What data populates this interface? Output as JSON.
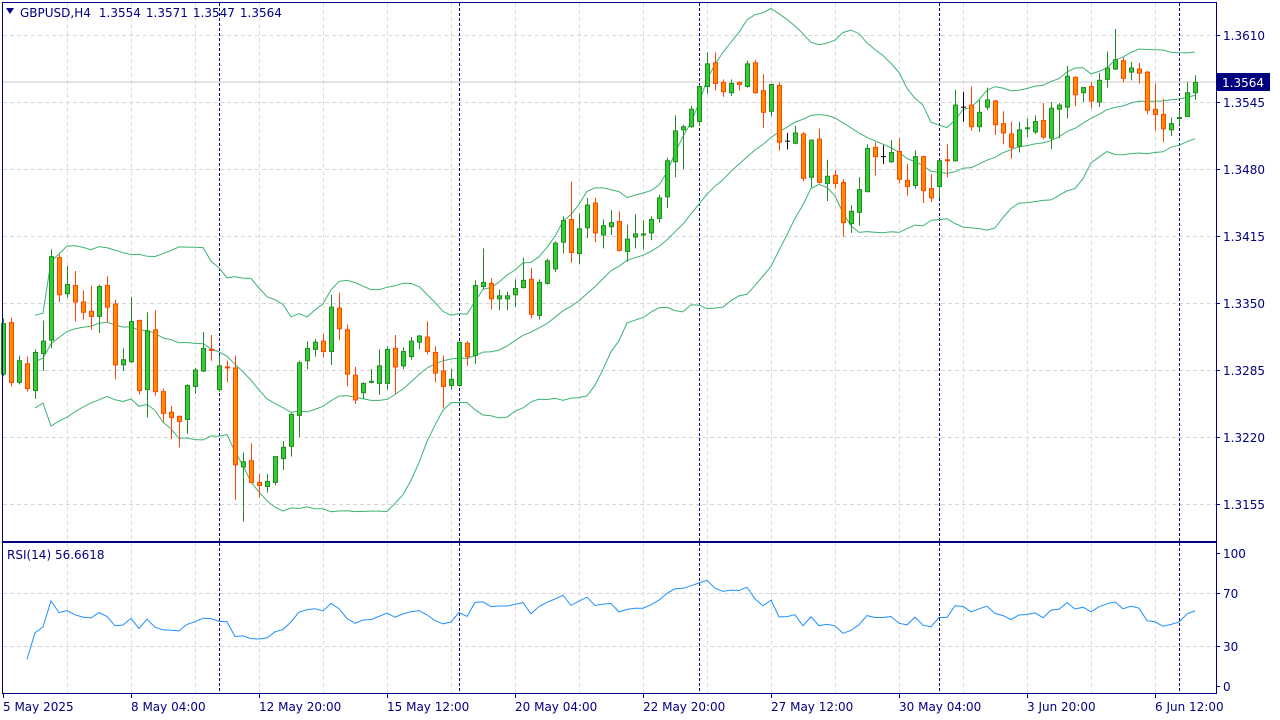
{
  "header": {
    "menu_icon": "triangle-down-icon",
    "symbol_timeframe": "GBPUSD,H4",
    "open": "1.3554",
    "high": "1.3571",
    "low": "1.3547",
    "close": "1.3564"
  },
  "current_price_label": "1.3564",
  "rsi_label": "RSI(14) 56.6618",
  "colors": {
    "bull_fill": "#32CD32",
    "bull_border": "#228B22",
    "bear_fill": "#FF8C00",
    "bear_border": "#FF4500",
    "bands": "#3CB371",
    "rsi": "#1E90FF",
    "axis": "#000080"
  },
  "chart_data": [
    {
      "type": "candlestick",
      "title": "GBPUSD,H4",
      "indicator": "Bollinger Bands (20, 2)",
      "ylim": [
        1.3115,
        1.3659
      ],
      "yticks": [
        "1.3610",
        "1.3545",
        "1.3480",
        "1.3415",
        "1.3350",
        "1.3285",
        "1.3220",
        "1.3155"
      ],
      "ytick_values": [
        1.361,
        1.3545,
        1.348,
        1.3415,
        1.335,
        1.3285,
        1.322,
        1.3155
      ],
      "xticks": [
        "5 May 2025",
        "8 May 04:00",
        "12 May 20:00",
        "15 May 12:00",
        "20 May 04:00",
        "22 May 20:00",
        "27 May 12:00",
        "30 May 04:00",
        "3 Jun 20:00",
        "6 Jun 12:00"
      ],
      "grid": true,
      "ohlc": [
        [
          1.3281,
          1.3335,
          1.3279,
          1.333
        ],
        [
          1.3331,
          1.3336,
          1.3269,
          1.3273
        ],
        [
          1.3273,
          1.3299,
          1.3271,
          1.3294
        ],
        [
          1.3291,
          1.3298,
          1.3264,
          1.3267
        ],
        [
          1.3265,
          1.3305,
          1.3257,
          1.3302
        ],
        [
          1.3301,
          1.3333,
          1.3284,
          1.3313
        ],
        [
          1.3314,
          1.3402,
          1.3306,
          1.3395
        ],
        [
          1.3394,
          1.3397,
          1.3351,
          1.3358
        ],
        [
          1.3359,
          1.3386,
          1.3355,
          1.3368
        ],
        [
          1.3367,
          1.3381,
          1.3332,
          1.3351
        ],
        [
          1.3351,
          1.3362,
          1.3334,
          1.3341
        ],
        [
          1.3342,
          1.3367,
          1.3324,
          1.3337
        ],
        [
          1.3337,
          1.3368,
          1.3321,
          1.3366
        ],
        [
          1.3367,
          1.3376,
          1.3331,
          1.3346
        ],
        [
          1.3349,
          1.3353,
          1.3276,
          1.329
        ],
        [
          1.329,
          1.3306,
          1.3284,
          1.3295
        ],
        [
          1.3293,
          1.3356,
          1.3292,
          1.3332
        ],
        [
          1.3333,
          1.3334,
          1.3261,
          1.3265
        ],
        [
          1.3266,
          1.3341,
          1.3239,
          1.3323
        ],
        [
          1.3324,
          1.3343,
          1.326,
          1.3264
        ],
        [
          1.3264,
          1.3267,
          1.3235,
          1.3243
        ],
        [
          1.3244,
          1.325,
          1.3218,
          1.3239
        ],
        [
          1.324,
          1.3241,
          1.321,
          1.3235
        ],
        [
          1.3237,
          1.3271,
          1.3223,
          1.327
        ],
        [
          1.3269,
          1.3287,
          1.3262,
          1.3285
        ],
        [
          1.3284,
          1.3322,
          1.3283,
          1.3306
        ],
        [
          1.3305,
          1.3319,
          1.3294,
          1.3304
        ],
        [
          1.3266,
          1.3299,
          1.3264,
          1.3289
        ],
        [
          1.3288,
          1.3294,
          1.3273,
          1.3287
        ],
        [
          1.3287,
          1.3299,
          1.3159,
          1.3193
        ],
        [
          1.3191,
          1.3205,
          1.3138,
          1.3196
        ],
        [
          1.3197,
          1.3214,
          1.3175,
          1.3176
        ],
        [
          1.3176,
          1.3184,
          1.3161,
          1.3173
        ],
        [
          1.3172,
          1.3184,
          1.3166,
          1.3177
        ],
        [
          1.3176,
          1.3201,
          1.3173,
          1.3201
        ],
        [
          1.3199,
          1.3216,
          1.3188,
          1.321
        ],
        [
          1.3211,
          1.3243,
          1.3201,
          1.3242
        ],
        [
          1.3241,
          1.3294,
          1.322,
          1.3292
        ],
        [
          1.3294,
          1.3313,
          1.3286,
          1.3306
        ],
        [
          1.3305,
          1.3315,
          1.3298,
          1.3312
        ],
        [
          1.3313,
          1.332,
          1.3297,
          1.3303
        ],
        [
          1.3303,
          1.3358,
          1.329,
          1.3346
        ],
        [
          1.3345,
          1.336,
          1.3314,
          1.3325
        ],
        [
          1.3324,
          1.3329,
          1.3269,
          1.3281
        ],
        [
          1.328,
          1.3288,
          1.3252,
          1.3256
        ],
        [
          1.3263,
          1.3273,
          1.3257,
          1.3272
        ],
        [
          1.3273,
          1.3286,
          1.3272,
          1.3274
        ],
        [
          1.3272,
          1.3305,
          1.3261,
          1.3289
        ],
        [
          1.3272,
          1.3308,
          1.3266,
          1.3305
        ],
        [
          1.3306,
          1.3319,
          1.3262,
          1.3288
        ],
        [
          1.3289,
          1.3307,
          1.3286,
          1.3303
        ],
        [
          1.3298,
          1.3317,
          1.3295,
          1.3313
        ],
        [
          1.3312,
          1.3319,
          1.3305,
          1.3318
        ],
        [
          1.3317,
          1.3332,
          1.33,
          1.3303
        ],
        [
          1.3302,
          1.3308,
          1.3273,
          1.3282
        ],
        [
          1.3284,
          1.3299,
          1.3248,
          1.3269
        ],
        [
          1.327,
          1.3286,
          1.3266,
          1.3276
        ],
        [
          1.327,
          1.3312,
          1.3269,
          1.3312
        ],
        [
          1.3311,
          1.3313,
          1.3289,
          1.3298
        ],
        [
          1.3299,
          1.3372,
          1.3291,
          1.3367
        ],
        [
          1.3366,
          1.3403,
          1.3363,
          1.337
        ],
        [
          1.3369,
          1.3374,
          1.3344,
          1.3354
        ],
        [
          1.3354,
          1.3363,
          1.3343,
          1.3357
        ],
        [
          1.3354,
          1.3361,
          1.3343,
          1.3357
        ],
        [
          1.3358,
          1.3373,
          1.3346,
          1.3364
        ],
        [
          1.3365,
          1.3394,
          1.3364,
          1.3372
        ],
        [
          1.3373,
          1.3384,
          1.3335,
          1.3339
        ],
        [
          1.3338,
          1.3373,
          1.3334,
          1.337
        ],
        [
          1.3369,
          1.3393,
          1.3368,
          1.3391
        ],
        [
          1.3383,
          1.341,
          1.338,
          1.3408
        ],
        [
          1.3409,
          1.3434,
          1.3398,
          1.343
        ],
        [
          1.3431,
          1.3468,
          1.3389,
          1.3399
        ],
        [
          1.3398,
          1.3437,
          1.3388,
          1.3422
        ],
        [
          1.3423,
          1.3452,
          1.3413,
          1.3445
        ],
        [
          1.3447,
          1.3452,
          1.3409,
          1.3418
        ],
        [
          1.3416,
          1.3431,
          1.3403,
          1.3425
        ],
        [
          1.3424,
          1.344,
          1.3416,
          1.3428
        ],
        [
          1.3429,
          1.3439,
          1.34,
          1.3401
        ],
        [
          1.34,
          1.3426,
          1.339,
          1.3412
        ],
        [
          1.3414,
          1.3436,
          1.3403,
          1.3417
        ],
        [
          1.3416,
          1.343,
          1.3402,
          1.3417
        ],
        [
          1.3418,
          1.3434,
          1.3411,
          1.3431
        ],
        [
          1.3432,
          1.3455,
          1.3428,
          1.3452
        ],
        [
          1.3453,
          1.3491,
          1.3442,
          1.3488
        ],
        [
          1.3487,
          1.3532,
          1.3472,
          1.3517
        ],
        [
          1.3518,
          1.3523,
          1.348,
          1.3521
        ],
        [
          1.3521,
          1.3541,
          1.352,
          1.3538
        ],
        [
          1.3526,
          1.3562,
          1.3522,
          1.356
        ],
        [
          1.356,
          1.3593,
          1.3553,
          1.3582
        ],
        [
          1.3583,
          1.3593,
          1.3556,
          1.3563
        ],
        [
          1.3564,
          1.3567,
          1.355,
          1.3555
        ],
        [
          1.3554,
          1.3567,
          1.3551,
          1.3563
        ],
        [
          1.3564,
          1.3565,
          1.3556,
          1.3562
        ],
        [
          1.356,
          1.3585,
          1.3559,
          1.3582
        ],
        [
          1.3583,
          1.3586,
          1.3553,
          1.3554
        ],
        [
          1.3556,
          1.3572,
          1.352,
          1.3535
        ],
        [
          1.3536,
          1.3562,
          1.3531,
          1.3562
        ],
        [
          1.3561,
          1.3564,
          1.3498,
          1.3506
        ],
        [
          1.3507,
          1.3515,
          1.3499,
          1.3507
        ],
        [
          1.3505,
          1.3522,
          1.3504,
          1.3515
        ],
        [
          1.3514,
          1.3516,
          1.3468,
          1.3471
        ],
        [
          1.3472,
          1.3508,
          1.3462,
          1.3508
        ],
        [
          1.3509,
          1.3519,
          1.3466,
          1.3467
        ],
        [
          1.3466,
          1.3489,
          1.3449,
          1.3473
        ],
        [
          1.3474,
          1.3479,
          1.3461,
          1.3466
        ],
        [
          1.3467,
          1.347,
          1.3414,
          1.3428
        ],
        [
          1.3427,
          1.3445,
          1.3418,
          1.3439
        ],
        [
          1.3438,
          1.3472,
          1.3425,
          1.346
        ],
        [
          1.3458,
          1.3504,
          1.3458,
          1.35
        ],
        [
          1.3501,
          1.3506,
          1.3474,
          1.3492
        ],
        [
          1.3492,
          1.3503,
          1.3485,
          1.3492
        ],
        [
          1.3487,
          1.3508,
          1.3486,
          1.3496
        ],
        [
          1.3497,
          1.351,
          1.3466,
          1.347
        ],
        [
          1.3469,
          1.3485,
          1.3454,
          1.3463
        ],
        [
          1.3464,
          1.3498,
          1.3461,
          1.3492
        ],
        [
          1.3492,
          1.3493,
          1.3447,
          1.3459
        ],
        [
          1.3461,
          1.3475,
          1.3448,
          1.3452
        ],
        [
          1.3463,
          1.3488,
          1.3452,
          1.3488
        ],
        [
          1.3489,
          1.3504,
          1.3472,
          1.3488
        ],
        [
          1.3488,
          1.3557,
          1.3487,
          1.3542
        ],
        [
          1.354,
          1.3555,
          1.3526,
          1.354
        ],
        [
          1.3542,
          1.356,
          1.3517,
          1.3521
        ],
        [
          1.3521,
          1.3547,
          1.3516,
          1.3535
        ],
        [
          1.354,
          1.3559,
          1.3537,
          1.3547
        ],
        [
          1.3546,
          1.3547,
          1.3513,
          1.3523
        ],
        [
          1.3524,
          1.3536,
          1.3504,
          1.3515
        ],
        [
          1.3514,
          1.3526,
          1.349,
          1.3501
        ],
        [
          1.3502,
          1.3526,
          1.3496,
          1.3518
        ],
        [
          1.3519,
          1.3529,
          1.3511,
          1.352
        ],
        [
          1.3516,
          1.3532,
          1.3514,
          1.3526
        ],
        [
          1.3527,
          1.3544,
          1.3509,
          1.3511
        ],
        [
          1.351,
          1.3545,
          1.3499,
          1.3539
        ],
        [
          1.3538,
          1.3544,
          1.351,
          1.3542
        ],
        [
          1.354,
          1.358,
          1.3529,
          1.357
        ],
        [
          1.3569,
          1.357,
          1.3541,
          1.3552
        ],
        [
          1.3554,
          1.3559,
          1.3545,
          1.3559
        ],
        [
          1.356,
          1.3564,
          1.3539,
          1.3546
        ],
        [
          1.3545,
          1.3573,
          1.354,
          1.3566
        ],
        [
          1.3567,
          1.3594,
          1.3559,
          1.3578
        ],
        [
          1.3577,
          1.3616,
          1.3576,
          1.3586
        ],
        [
          1.3585,
          1.3588,
          1.3564,
          1.3568
        ],
        [
          1.3574,
          1.3584,
          1.3566,
          1.3578
        ],
        [
          1.3577,
          1.3583,
          1.3563,
          1.3573
        ],
        [
          1.3574,
          1.3575,
          1.3533,
          1.3537
        ],
        [
          1.3538,
          1.3563,
          1.3517,
          1.3533
        ],
        [
          1.3533,
          1.3548,
          1.3506,
          1.3519
        ],
        [
          1.3518,
          1.353,
          1.3512,
          1.3524
        ],
        [
          1.3529,
          1.3537,
          1.3523,
          1.353
        ],
        [
          1.3531,
          1.3564,
          1.3531,
          1.3554
        ],
        [
          1.3554,
          1.3571,
          1.3547,
          1.3564
        ]
      ]
    },
    {
      "type": "line",
      "title": "RSI(14) 56.6618",
      "ylim": [
        0,
        100
      ],
      "yticks": [
        "100",
        "70",
        "30",
        "0"
      ],
      "ytick_values": [
        100,
        70,
        30,
        0
      ],
      "period": 14,
      "last_value": 56.6618
    }
  ]
}
